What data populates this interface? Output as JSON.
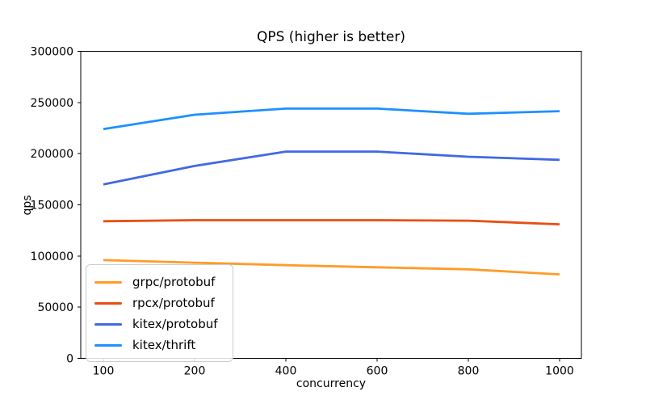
{
  "figure": {
    "background": "#ffffff"
  },
  "chart_data": {
    "type": "line",
    "title": "QPS (higher is better)",
    "xlabel": "concurrency",
    "ylabel": "qps",
    "x_categories": [
      "100",
      "200",
      "400",
      "600",
      "800",
      "1000"
    ],
    "x_axis_type": "categorical-even-spacing",
    "yticks": [
      0,
      50000,
      100000,
      150000,
      200000,
      250000,
      300000
    ],
    "ylim": [
      0,
      300000
    ],
    "grid": false,
    "legend_position": "lower-left",
    "series": [
      {
        "name": "grpc/protobuf",
        "color": "#ff9b28",
        "values": [
          96000,
          93500,
          91000,
          89000,
          87000,
          82000
        ]
      },
      {
        "name": "rpcx/protobuf",
        "color": "#e94e12",
        "values": [
          134000,
          135000,
          135000,
          135000,
          134500,
          131000
        ]
      },
      {
        "name": "kitex/protobuf",
        "color": "#4169e1",
        "values": [
          170000,
          188000,
          202000,
          202000,
          197000,
          194000
        ]
      },
      {
        "name": "kitex/thrift",
        "color": "#1e90ff",
        "values": [
          224000,
          238000,
          244000,
          244000,
          239000,
          241500
        ]
      }
    ]
  }
}
